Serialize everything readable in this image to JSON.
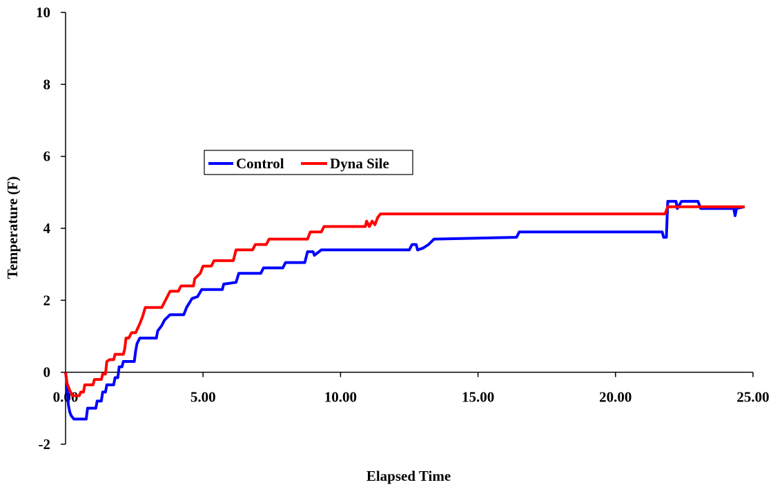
{
  "chart_data": {
    "type": "line",
    "title": "",
    "xlabel": "Elapsed Time",
    "ylabel": "Temperature (F)",
    "xlim": [
      0,
      25
    ],
    "ylim": [
      -2,
      10
    ],
    "x_ticks": [
      "0.00",
      "5.00",
      "10.00",
      "15.00",
      "20.00",
      "25.00"
    ],
    "y_ticks": [
      "-2",
      "0",
      "2",
      "4",
      "6",
      "8",
      "10"
    ],
    "grid": false,
    "legend_position": "center-left",
    "series": [
      {
        "name": "Control",
        "color": "#0000FF",
        "points": [
          [
            0,
            0
          ],
          [
            0.05,
            -0.3
          ],
          [
            0.1,
            -0.9
          ],
          [
            0.15,
            -1.1
          ],
          [
            0.2,
            -1.2
          ],
          [
            0.3,
            -1.3
          ],
          [
            0.75,
            -1.3
          ],
          [
            0.8,
            -1.0
          ],
          [
            1.1,
            -1.0
          ],
          [
            1.15,
            -0.8
          ],
          [
            1.3,
            -0.8
          ],
          [
            1.35,
            -0.55
          ],
          [
            1.45,
            -0.55
          ],
          [
            1.5,
            -0.35
          ],
          [
            1.75,
            -0.35
          ],
          [
            1.8,
            -0.15
          ],
          [
            1.9,
            -0.15
          ],
          [
            1.95,
            0.15
          ],
          [
            2.05,
            0.15
          ],
          [
            2.1,
            0.3
          ],
          [
            2.5,
            0.3
          ],
          [
            2.55,
            0.6
          ],
          [
            2.6,
            0.8
          ],
          [
            2.7,
            0.95
          ],
          [
            3.3,
            0.95
          ],
          [
            3.35,
            1.15
          ],
          [
            3.5,
            1.3
          ],
          [
            3.6,
            1.45
          ],
          [
            3.8,
            1.6
          ],
          [
            4.3,
            1.6
          ],
          [
            4.4,
            1.8
          ],
          [
            4.6,
            2.05
          ],
          [
            4.8,
            2.1
          ],
          [
            4.95,
            2.3
          ],
          [
            5.7,
            2.3
          ],
          [
            5.75,
            2.45
          ],
          [
            6.2,
            2.5
          ],
          [
            6.3,
            2.75
          ],
          [
            7.1,
            2.75
          ],
          [
            7.2,
            2.9
          ],
          [
            7.9,
            2.9
          ],
          [
            8.0,
            3.05
          ],
          [
            8.7,
            3.05
          ],
          [
            8.8,
            3.35
          ],
          [
            9.0,
            3.35
          ],
          [
            9.05,
            3.25
          ],
          [
            9.3,
            3.4
          ],
          [
            12.5,
            3.4
          ],
          [
            12.6,
            3.55
          ],
          [
            12.75,
            3.55
          ],
          [
            12.8,
            3.4
          ],
          [
            13.0,
            3.45
          ],
          [
            13.2,
            3.55
          ],
          [
            13.4,
            3.7
          ],
          [
            16.4,
            3.75
          ],
          [
            16.5,
            3.9
          ],
          [
            21.7,
            3.9
          ],
          [
            21.75,
            3.75
          ],
          [
            21.85,
            3.75
          ],
          [
            21.9,
            4.75
          ],
          [
            22.2,
            4.75
          ],
          [
            22.25,
            4.55
          ],
          [
            22.4,
            4.75
          ],
          [
            23.0,
            4.75
          ],
          [
            23.1,
            4.55
          ],
          [
            24.3,
            4.55
          ],
          [
            24.35,
            4.35
          ],
          [
            24.4,
            4.55
          ],
          [
            24.7,
            4.6
          ]
        ]
      },
      {
        "name": "Dyna Sile",
        "color": "#FF0000",
        "points": [
          [
            0,
            0
          ],
          [
            0.05,
            -0.3
          ],
          [
            0.15,
            -0.5
          ],
          [
            0.25,
            -0.65
          ],
          [
            0.5,
            -0.65
          ],
          [
            0.55,
            -0.55
          ],
          [
            0.65,
            -0.55
          ],
          [
            0.7,
            -0.35
          ],
          [
            1.0,
            -0.35
          ],
          [
            1.05,
            -0.2
          ],
          [
            1.3,
            -0.2
          ],
          [
            1.35,
            -0.05
          ],
          [
            1.45,
            -0.05
          ],
          [
            1.5,
            0.3
          ],
          [
            1.6,
            0.35
          ],
          [
            1.75,
            0.35
          ],
          [
            1.8,
            0.5
          ],
          [
            2.1,
            0.5
          ],
          [
            2.15,
            0.65
          ],
          [
            2.2,
            0.95
          ],
          [
            2.3,
            0.95
          ],
          [
            2.4,
            1.1
          ],
          [
            2.55,
            1.1
          ],
          [
            2.7,
            1.35
          ],
          [
            2.8,
            1.55
          ],
          [
            2.9,
            1.8
          ],
          [
            3.5,
            1.8
          ],
          [
            3.6,
            1.95
          ],
          [
            3.8,
            2.25
          ],
          [
            4.1,
            2.25
          ],
          [
            4.2,
            2.4
          ],
          [
            4.65,
            2.4
          ],
          [
            4.7,
            2.6
          ],
          [
            4.9,
            2.75
          ],
          [
            5.0,
            2.95
          ],
          [
            5.3,
            2.95
          ],
          [
            5.4,
            3.1
          ],
          [
            6.1,
            3.1
          ],
          [
            6.2,
            3.4
          ],
          [
            6.8,
            3.4
          ],
          [
            6.9,
            3.55
          ],
          [
            7.3,
            3.55
          ],
          [
            7.4,
            3.7
          ],
          [
            8.8,
            3.7
          ],
          [
            8.9,
            3.9
          ],
          [
            9.3,
            3.9
          ],
          [
            9.4,
            4.05
          ],
          [
            10.9,
            4.05
          ],
          [
            10.95,
            4.2
          ],
          [
            11.05,
            4.05
          ],
          [
            11.15,
            4.2
          ],
          [
            11.25,
            4.1
          ],
          [
            11.35,
            4.3
          ],
          [
            11.45,
            4.4
          ],
          [
            21.8,
            4.4
          ],
          [
            21.9,
            4.6
          ],
          [
            24.7,
            4.6
          ]
        ]
      }
    ]
  }
}
